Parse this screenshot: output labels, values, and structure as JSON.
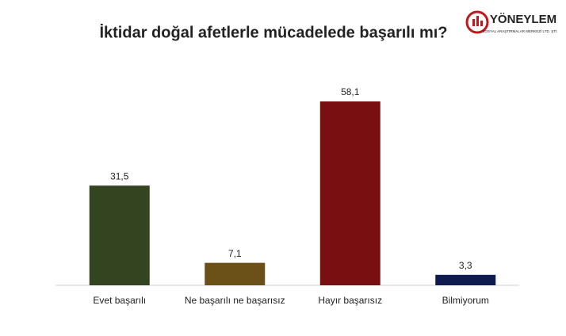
{
  "chart_data": {
    "type": "bar",
    "title": "İktidar doğal afetlerle mücadelede başarılı mı?",
    "categories": [
      "Evet başarılı",
      "Ne başarılı ne başarısız",
      "Hayır başarısız",
      "Bilmiyorum"
    ],
    "values": [
      31.5,
      7.1,
      58.1,
      3.3
    ],
    "value_labels": [
      "31,5",
      "7,1",
      "58,1",
      "3,3"
    ],
    "colors": [
      "#344420",
      "#6b5018",
      "#7a0f12",
      "#0f1a4e"
    ],
    "ylim": [
      0,
      60
    ]
  },
  "logo": {
    "name": "YÖNEYLEM",
    "subtitle": "SOSYAL ARAŞTIRMALAR MERKEZİ LTD. ŞTİ."
  }
}
